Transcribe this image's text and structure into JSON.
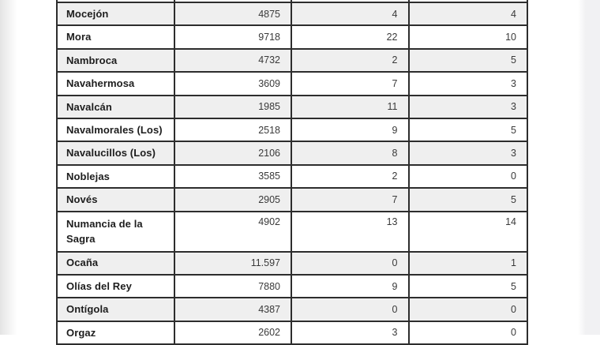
{
  "page": {
    "background": "#ffffff",
    "margin_shade_left": "#e4e4e4",
    "margin_shade_right": "#f1f1f3"
  },
  "table": {
    "border_color": "#2d2d2d",
    "row_alt_color": "#efefef",
    "rows": [
      {
        "name": "Mocejón",
        "value1": "4875",
        "value2": "4",
        "value3": "4"
      },
      {
        "name": "Mora",
        "value1": "9718",
        "value2": "22",
        "value3": "10"
      },
      {
        "name": "Nambroca",
        "value1": "4732",
        "value2": "2",
        "value3": "5"
      },
      {
        "name": "Navahermosa",
        "value1": "3609",
        "value2": "7",
        "value3": "3"
      },
      {
        "name": "Navalcán",
        "value1": "1985",
        "value2": "11",
        "value3": "3"
      },
      {
        "name": "Navalmorales (Los)",
        "value1": "2518",
        "value2": "9",
        "value3": "5"
      },
      {
        "name": "Navalucillos (Los)",
        "value1": "2106",
        "value2": "8",
        "value3": "3"
      },
      {
        "name": "Noblejas",
        "value1": "3585",
        "value2": "2",
        "value3": "0"
      },
      {
        "name": "Novés",
        "value1": "2905",
        "value2": "7",
        "value3": "5"
      },
      {
        "name": "Numancia de la Sagra",
        "value1": "4902",
        "value2": "13",
        "value3": "14"
      },
      {
        "name": "Ocaña",
        "value1": "11.597",
        "value2": "0",
        "value3": "1"
      },
      {
        "name": "Olías del Rey",
        "value1": "7880",
        "value2": "9",
        "value3": "5"
      },
      {
        "name": "Ontígola",
        "value1": "4387",
        "value2": "0",
        "value3": "0"
      },
      {
        "name": "Orgaz",
        "value1": "2602",
        "value2": "3",
        "value3": "0"
      }
    ]
  }
}
